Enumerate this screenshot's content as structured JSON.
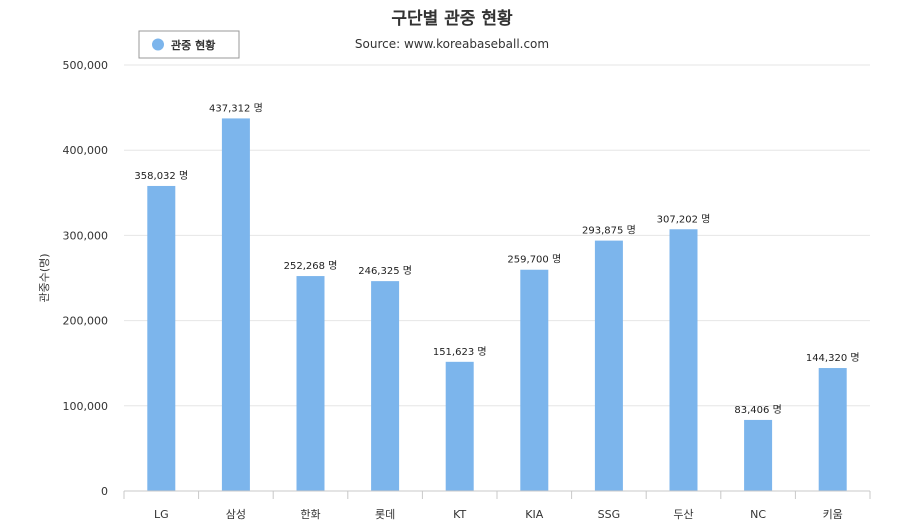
{
  "chart_data": {
    "type": "bar",
    "title": "구단별 관중 현황",
    "subtitle": "Source: www.koreabaseball.com",
    "ylabel": "관중수(명)",
    "xlabel": "",
    "ylim": [
      0,
      500000
    ],
    "yticks": [
      0,
      100000,
      200000,
      300000,
      400000,
      500000
    ],
    "ytick_labels": [
      "0",
      "100,000",
      "200,000",
      "300,000",
      "400,000",
      "500,000"
    ],
    "categories": [
      "LG",
      "삼성",
      "한화",
      "롯데",
      "KT",
      "KIA",
      "SSG",
      "두산",
      "NC",
      "키움"
    ],
    "series": [
      {
        "name": "관중 현황",
        "values": [
          358032,
          437312,
          252268,
          246325,
          151623,
          259700,
          293875,
          307202,
          83406,
          144320
        ],
        "data_labels": [
          "358,032 명",
          "437,312 명",
          "252,268 명",
          "246,325 명",
          "151,623 명",
          "259,700 명",
          "293,875 명",
          "307,202 명",
          "83,406 명",
          "144,320 명"
        ]
      }
    ],
    "grid": true,
    "legend_position": "top-left",
    "colors": {
      "bar": "#7cb5ec",
      "grid": "#e6e6e6",
      "axis": "#c8c8c8"
    }
  }
}
